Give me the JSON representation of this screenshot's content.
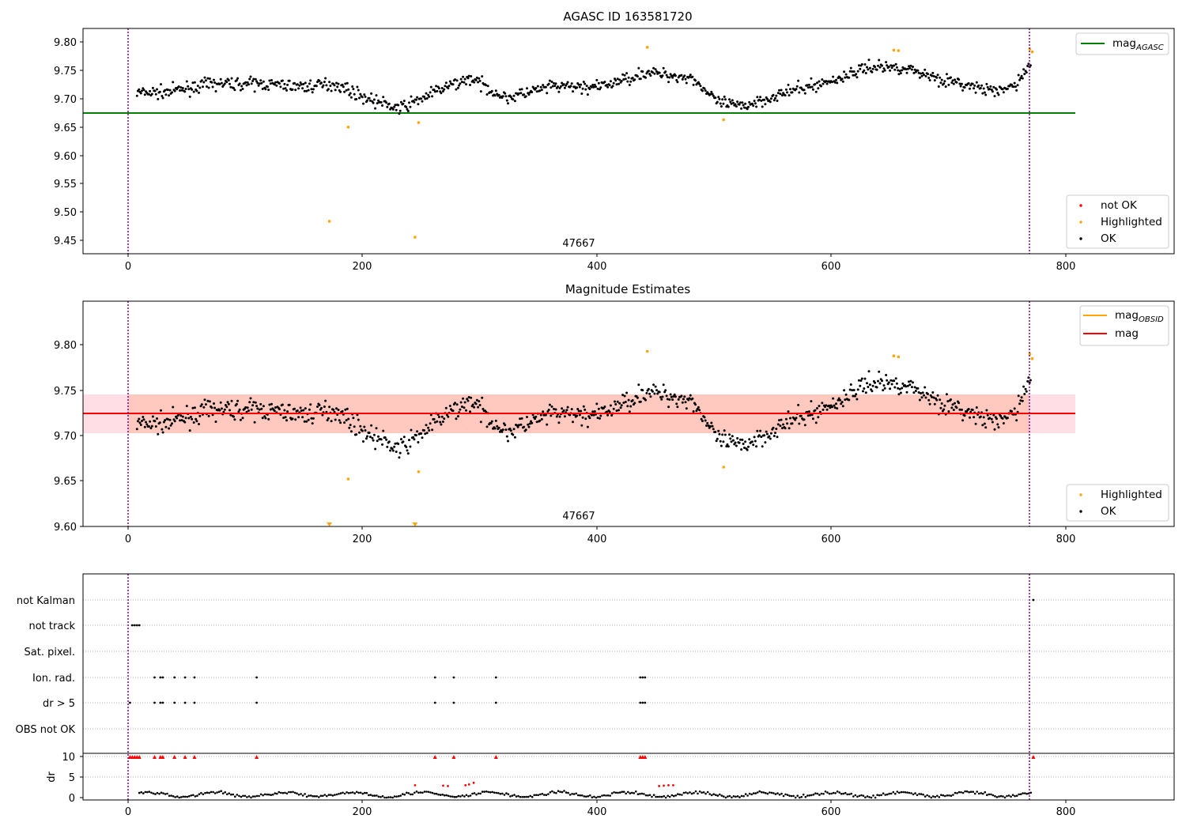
{
  "chart_data": [
    {
      "type": "scatter",
      "title": "AGASC ID 163581720",
      "xlim": [
        -40,
        890
      ],
      "ylim": [
        9.43,
        9.825
      ],
      "xticks": [
        "0",
        "200",
        "400",
        "600",
        "800"
      ],
      "yticks": [
        "9.45",
        "9.50",
        "9.55",
        "9.60",
        "9.65",
        "9.70",
        "9.75",
        "9.80"
      ],
      "obsid_label": "47667",
      "obs_bounds": [
        0,
        770
      ],
      "mag_agasc": 9.675,
      "line_legend": [
        {
          "label": "mag",
          "sub": "AGASC",
          "color": "#008000"
        }
      ],
      "marker_legend": [
        {
          "label": "not OK",
          "color": "#ff0000"
        },
        {
          "label": "Highlighted",
          "color": "#ffa500"
        },
        {
          "label": "OK",
          "color": "#000000"
        }
      ],
      "highlighted": [
        [
          170,
          9.487
        ],
        [
          186,
          9.652
        ],
        [
          243,
          9.459
        ],
        [
          246,
          9.66
        ],
        [
          441,
          9.792
        ],
        [
          506,
          9.665
        ],
        [
          651,
          9.787
        ],
        [
          655,
          9.786
        ],
        [
          767,
          9.789
        ],
        [
          769,
          9.784
        ]
      ],
      "series": [
        {
          "name": "OK",
          "x": [],
          "y": []
        }
      ]
    },
    {
      "type": "scatter",
      "title": "Magnitude Estimates",
      "xlim": [
        -40,
        890
      ],
      "ylim": [
        9.6,
        9.847
      ],
      "xticks": [
        "0",
        "200",
        "400",
        "600",
        "800"
      ],
      "yticks": [
        "9.60",
        "9.65",
        "9.70",
        "9.75",
        "9.80"
      ],
      "obsid_label": "47667",
      "obs_bounds": [
        0,
        770
      ],
      "mag": 9.724,
      "mag_band": [
        9.703,
        9.745
      ],
      "line_legend": [
        {
          "label": "mag",
          "sub": "OBSID",
          "color": "#ffa500"
        },
        {
          "label": "mag",
          "sub": "",
          "color": "#ff0000"
        }
      ],
      "marker_legend": [
        {
          "label": "Highlighted",
          "color": "#ffa500"
        },
        {
          "label": "OK",
          "color": "#000000"
        }
      ],
      "highlighted": [
        [
          186,
          9.652
        ],
        [
          246,
          9.66
        ],
        [
          441,
          9.792
        ],
        [
          506,
          9.665
        ],
        [
          651,
          9.787
        ],
        [
          655,
          9.786
        ],
        [
          767,
          9.789
        ],
        [
          769,
          9.784
        ]
      ],
      "below_range": [
        170,
        243
      ],
      "series": [
        {
          "name": "OK",
          "x": [],
          "y": []
        }
      ]
    },
    {
      "type": "scatter",
      "xlim": [
        -40,
        890
      ],
      "flag_labels": [
        "not Kalman",
        "not track",
        "Sat. pixel.",
        "Ion. rad.",
        "dr > 5",
        "OBS not OK"
      ],
      "flags": {
        "not track": [
          2,
          4,
          6,
          8
        ],
        "Ion. rad.": [
          21,
          26,
          28,
          38,
          47,
          55,
          108,
          260,
          276,
          312,
          435,
          437,
          439
        ],
        "dr > 5": [
          0,
          21,
          26,
          28,
          38,
          47,
          55,
          108,
          260,
          276,
          312,
          435,
          437,
          439
        ]
      },
      "not_kalman_end": 770,
      "dr_ylabel": "dr",
      "dr_yticks": [
        "0",
        "5",
        "10"
      ],
      "dr_top_red": [
        0,
        2,
        4,
        6,
        8,
        21,
        26,
        28,
        38,
        47,
        55,
        108,
        260,
        276,
        312,
        435,
        437,
        439,
        770
      ],
      "red_dr": [
        [
          243,
          3.0
        ],
        [
          267,
          2.9
        ],
        [
          271,
          2.8
        ],
        [
          286,
          3.0
        ],
        [
          289,
          3.2
        ],
        [
          293,
          3.6
        ],
        [
          451,
          2.8
        ],
        [
          455,
          2.9
        ],
        [
          459,
          3.0
        ],
        [
          463,
          3.0
        ]
      ],
      "xticks": [
        "0",
        "200",
        "400",
        "600",
        "800"
      ],
      "series": [
        {
          "name": "dr",
          "x": [],
          "y": []
        }
      ]
    }
  ]
}
